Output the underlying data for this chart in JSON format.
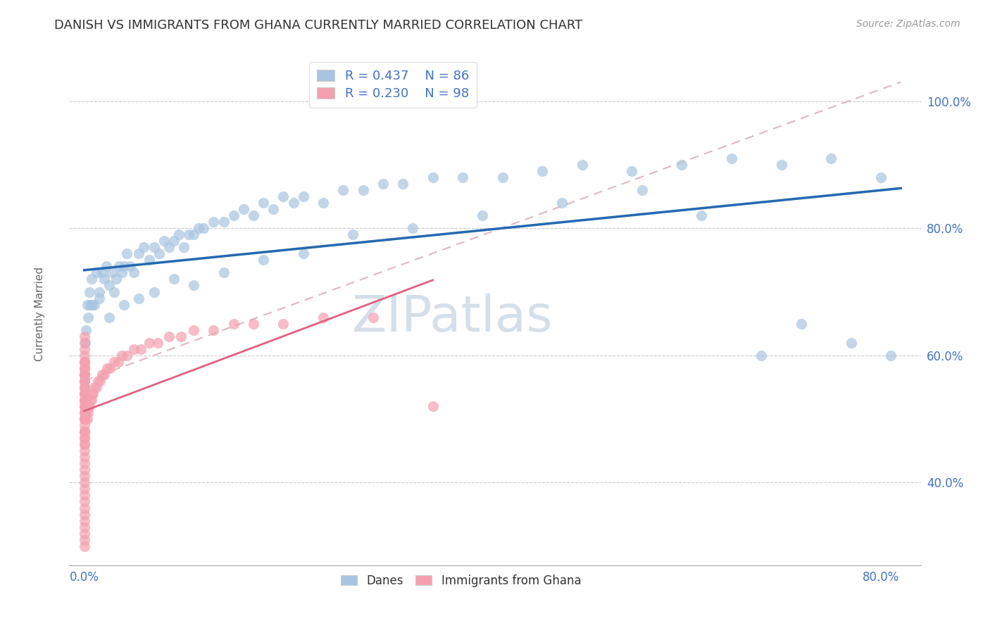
{
  "title": "DANISH VS IMMIGRANTS FROM GHANA CURRENTLY MARRIED CORRELATION CHART",
  "source": "Source: ZipAtlas.com",
  "ylabel": "Currently Married",
  "ytick_labels": [
    "40.0%",
    "60.0%",
    "80.0%",
    "100.0%"
  ],
  "ytick_vals": [
    0.4,
    0.6,
    0.8,
    1.0
  ],
  "xtick_labels": [
    "0.0%",
    "80.0%"
  ],
  "xtick_vals": [
    0.0,
    0.8
  ],
  "xlim": [
    -0.015,
    0.84
  ],
  "ylim": [
    0.27,
    1.08
  ],
  "r_danish": 0.437,
  "n_danish": 86,
  "r_ghana": 0.23,
  "n_ghana": 98,
  "danish_color": "#a8c4e0",
  "ghana_color": "#f4a0b0",
  "danish_line_color": "#2469b0",
  "ghana_line_color": "#e06080",
  "ref_line_color": "#d4a8b0",
  "background_color": "#ffffff",
  "title_fontsize": 13,
  "tick_color": "#4472c4",
  "tick_fontsize": 12,
  "ylabel_fontsize": 11,
  "legend_r_color": "#4472c4",
  "legend_n_color": "#4472c4",
  "watermark_color": "#d0dce8",
  "danish_pts_x": [
    0.003,
    0.005,
    0.007,
    0.01,
    0.012,
    0.015,
    0.018,
    0.02,
    0.022,
    0.025,
    0.028,
    0.03,
    0.032,
    0.035,
    0.038,
    0.04,
    0.043,
    0.046,
    0.05,
    0.055,
    0.06,
    0.065,
    0.07,
    0.075,
    0.08,
    0.085,
    0.09,
    0.095,
    0.1,
    0.105,
    0.11,
    0.115,
    0.12,
    0.13,
    0.14,
    0.15,
    0.16,
    0.17,
    0.18,
    0.19,
    0.2,
    0.21,
    0.22,
    0.24,
    0.26,
    0.28,
    0.3,
    0.32,
    0.35,
    0.38,
    0.42,
    0.46,
    0.5,
    0.55,
    0.6,
    0.65,
    0.7,
    0.75,
    0.8,
    0.0,
    0.001,
    0.002,
    0.004,
    0.006,
    0.008,
    0.015,
    0.025,
    0.04,
    0.055,
    0.07,
    0.09,
    0.11,
    0.14,
    0.18,
    0.22,
    0.27,
    0.33,
    0.4,
    0.48,
    0.56,
    0.62,
    0.68,
    0.72,
    0.77,
    0.81,
    0.0
  ],
  "danish_pts_y": [
    0.68,
    0.7,
    0.72,
    0.68,
    0.73,
    0.7,
    0.73,
    0.72,
    0.74,
    0.71,
    0.73,
    0.7,
    0.72,
    0.74,
    0.73,
    0.74,
    0.76,
    0.74,
    0.73,
    0.76,
    0.77,
    0.75,
    0.77,
    0.76,
    0.78,
    0.77,
    0.78,
    0.79,
    0.77,
    0.79,
    0.79,
    0.8,
    0.8,
    0.81,
    0.81,
    0.82,
    0.83,
    0.82,
    0.84,
    0.83,
    0.85,
    0.84,
    0.85,
    0.84,
    0.86,
    0.86,
    0.87,
    0.87,
    0.88,
    0.88,
    0.88,
    0.89,
    0.9,
    0.89,
    0.9,
    0.91,
    0.9,
    0.91,
    0.88,
    0.57,
    0.62,
    0.64,
    0.66,
    0.68,
    0.68,
    0.69,
    0.66,
    0.68,
    0.69,
    0.7,
    0.72,
    0.71,
    0.73,
    0.75,
    0.76,
    0.79,
    0.8,
    0.82,
    0.84,
    0.86,
    0.82,
    0.6,
    0.65,
    0.62,
    0.6,
    0.56
  ],
  "ghana_pts_x": [
    0.0,
    0.0,
    0.0,
    0.0,
    0.0,
    0.0,
    0.0,
    0.0,
    0.0,
    0.0,
    0.0,
    0.0,
    0.0,
    0.0,
    0.0,
    0.0,
    0.0,
    0.0,
    0.0,
    0.0,
    0.001,
    0.001,
    0.001,
    0.002,
    0.002,
    0.003,
    0.003,
    0.004,
    0.005,
    0.006,
    0.007,
    0.008,
    0.009,
    0.01,
    0.012,
    0.014,
    0.016,
    0.018,
    0.02,
    0.023,
    0.026,
    0.03,
    0.034,
    0.038,
    0.043,
    0.05,
    0.057,
    0.065,
    0.074,
    0.085,
    0.097,
    0.11,
    0.13,
    0.15,
    0.17,
    0.2,
    0.24,
    0.29,
    0.35,
    0.0,
    0.0,
    0.0,
    0.0,
    0.0,
    0.0,
    0.0,
    0.0,
    0.0,
    0.0,
    0.0,
    0.0,
    0.0,
    0.0,
    0.0,
    0.0,
    0.0,
    0.0,
    0.0,
    0.0,
    0.0,
    0.0,
    0.0,
    0.0,
    0.0,
    0.0,
    0.0,
    0.0,
    0.0,
    0.0,
    0.0,
    0.0,
    0.0,
    0.0,
    0.0,
    0.0,
    0.0,
    0.0,
    0.0
  ],
  "ghana_pts_y": [
    0.5,
    0.51,
    0.52,
    0.53,
    0.54,
    0.55,
    0.56,
    0.57,
    0.57,
    0.58,
    0.58,
    0.59,
    0.59,
    0.5,
    0.51,
    0.52,
    0.53,
    0.54,
    0.55,
    0.56,
    0.5,
    0.52,
    0.54,
    0.51,
    0.53,
    0.5,
    0.52,
    0.51,
    0.52,
    0.53,
    0.53,
    0.54,
    0.54,
    0.55,
    0.55,
    0.56,
    0.56,
    0.57,
    0.57,
    0.58,
    0.58,
    0.59,
    0.59,
    0.6,
    0.6,
    0.61,
    0.61,
    0.62,
    0.62,
    0.63,
    0.63,
    0.64,
    0.64,
    0.65,
    0.65,
    0.65,
    0.66,
    0.66,
    0.52,
    0.4,
    0.41,
    0.42,
    0.43,
    0.44,
    0.45,
    0.46,
    0.47,
    0.48,
    0.48,
    0.49,
    0.35,
    0.36,
    0.37,
    0.38,
    0.39,
    0.3,
    0.31,
    0.32,
    0.33,
    0.34,
    0.57,
    0.58,
    0.59,
    0.6,
    0.61,
    0.62,
    0.63,
    0.56,
    0.57,
    0.5,
    0.51,
    0.52,
    0.53,
    0.54,
    0.55,
    0.46,
    0.47,
    0.48
  ]
}
